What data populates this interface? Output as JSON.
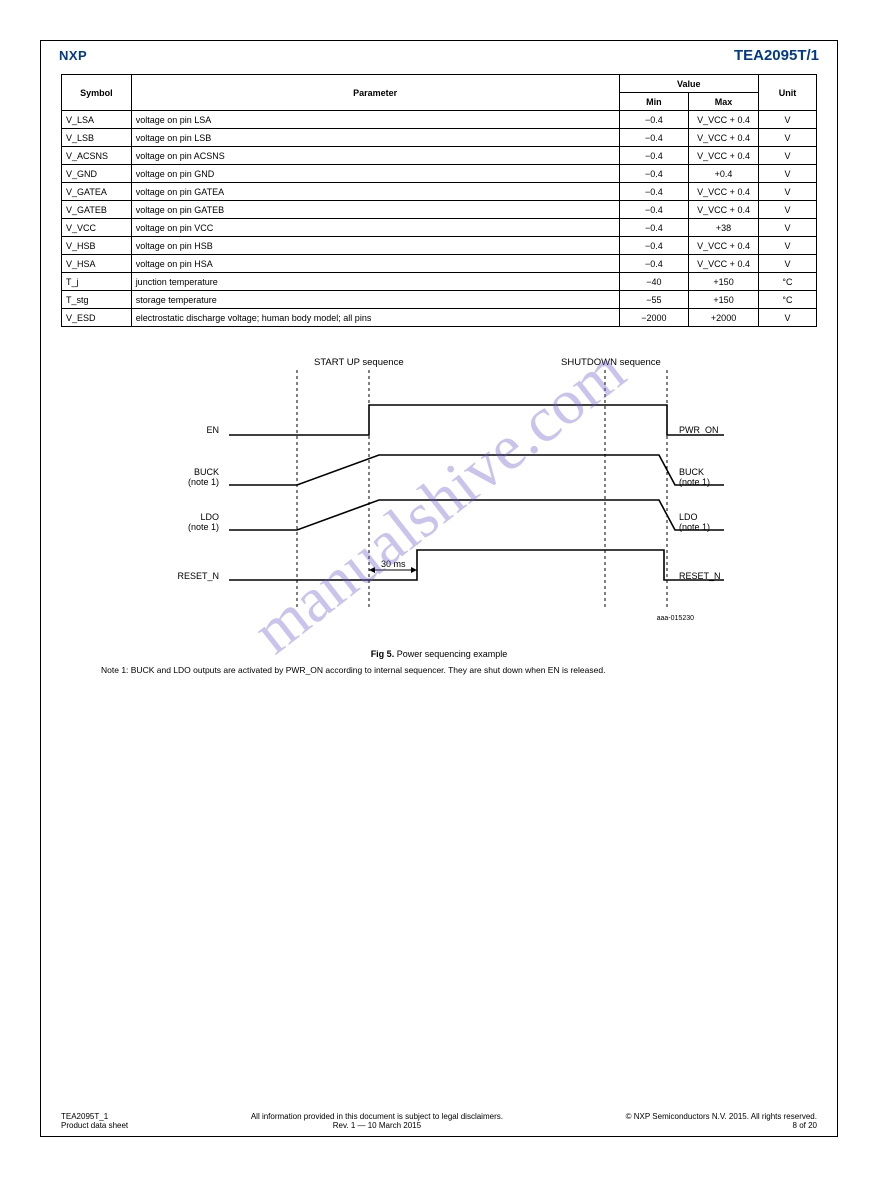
{
  "header": {
    "logo": "NXP",
    "chip": "TEA2095T/1"
  },
  "table": {
    "headers": {
      "symbol": "Symbol",
      "parameter": "Parameter",
      "value": "Value",
      "min": "Min",
      "max": "Max",
      "unit": "Unit"
    },
    "rows": [
      {
        "symbol": "V_LSA",
        "parameter": "voltage on pin LSA",
        "min": "−0.4",
        "max": "V_VCC + 0.4",
        "unit": "V"
      },
      {
        "symbol": "V_LSB",
        "parameter": "voltage on pin LSB",
        "min": "−0.4",
        "max": "V_VCC + 0.4",
        "unit": "V"
      },
      {
        "symbol": "V_ACSNS",
        "parameter": "voltage on pin ACSNS",
        "min": "−0.4",
        "max": "V_VCC + 0.4",
        "unit": "V"
      },
      {
        "symbol": "V_GND",
        "parameter": "voltage on pin GND",
        "min": "−0.4",
        "max": "+0.4",
        "unit": "V"
      },
      {
        "symbol": "V_GATEA",
        "parameter": "voltage on pin GATEA",
        "min": "−0.4",
        "max": "V_VCC + 0.4",
        "unit": "V"
      },
      {
        "symbol": "V_GATEB",
        "parameter": "voltage on pin GATEB",
        "min": "−0.4",
        "max": "V_VCC + 0.4",
        "unit": "V"
      },
      {
        "symbol": "V_VCC",
        "parameter": "voltage on pin VCC",
        "min": "−0.4",
        "max": "+38",
        "unit": "V"
      },
      {
        "symbol": "V_HSB",
        "parameter": "voltage on pin HSB",
        "min": "−0.4",
        "max": "V_VCC + 0.4",
        "unit": "V"
      },
      {
        "symbol": "V_HSA",
        "parameter": "voltage on pin HSA",
        "min": "−0.4",
        "max": "V_VCC + 0.4",
        "unit": "V"
      },
      {
        "symbol": "T_j",
        "parameter": "junction temperature",
        "min": "−40",
        "max": "+150",
        "unit": "°C"
      },
      {
        "symbol": "T_stg",
        "parameter": "storage temperature",
        "min": "−55",
        "max": "+150",
        "unit": "°C"
      },
      {
        "symbol": "V_ESD",
        "parameter": "electrostatic discharge voltage; human body model; all pins",
        "min": "−2000",
        "max": "+2000",
        "unit": "V"
      }
    ]
  },
  "diagram": {
    "startup_label": "START UP sequence",
    "shutdown_label": "SHUTDOWN sequence",
    "timing_annotation": "30 ms",
    "signals_left": [
      "EN",
      "BUCK\n(note 1)",
      "LDO\n(note 1)",
      "RESET_N"
    ],
    "signals_right": [
      "PWR_ON",
      "BUCK\n(note 1)",
      "LDO\n(note 1)",
      "RESET_N"
    ],
    "caption_number": "Fig 5.",
    "caption_text": "Power sequencing example",
    "note": "Note 1: BUCK and LDO outputs are activated by PWR_ON according to internal sequencer. They are shut down when EN is released.",
    "doc_ref": "aaa-015230"
  },
  "footer": {
    "doc": "TEA2095T_1",
    "info": "All information provided in this document is subject to legal disclaimers.",
    "copyright": "© NXP Semiconductors N.V. 2015. All rights reserved.",
    "ds": "Product data sheet",
    "rev": "Rev. 1 — 10 March 2015",
    "page": "8 of 20"
  },
  "watermark": "manualshive.com",
  "colors": {
    "brand": "#003a88",
    "watermark": "#6a5acd",
    "line": "#000000"
  }
}
